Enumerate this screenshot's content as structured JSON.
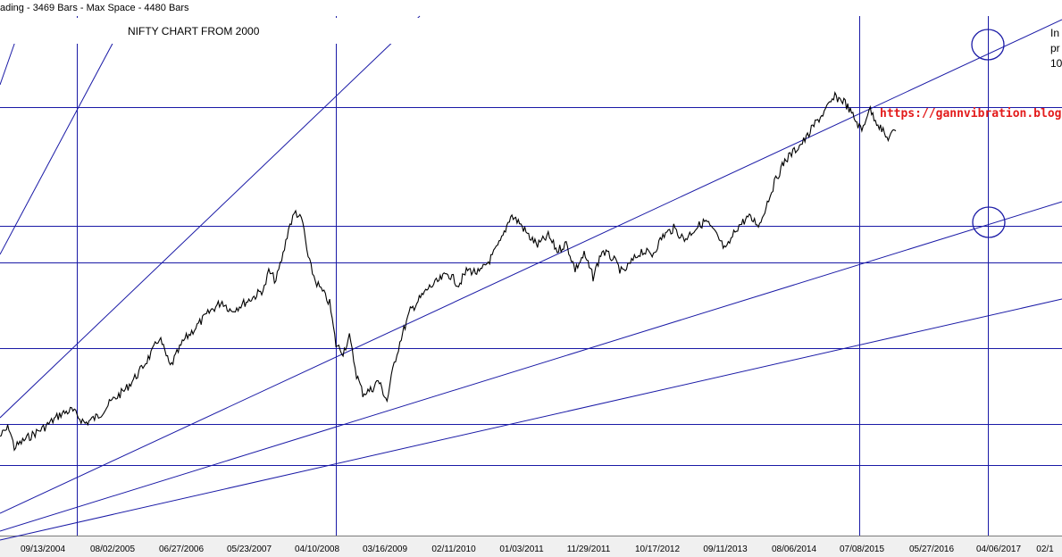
{
  "status_bar": {
    "left_text": "ading - 3469 Bars -  Max Space - 4480 Bars"
  },
  "title_box": {
    "text": "NIFTY CHART FROM 2000"
  },
  "watermark": {
    "url": "https://gannvibration.blogspot.in"
  },
  "side_note": {
    "line1": "In",
    "line2": "pr",
    "line3": "10"
  },
  "colors": {
    "background": "#ffffff",
    "chart_bg": "#ffffff",
    "price_line": "#000000",
    "gann_lines": "#1a1aa6",
    "url_text": "#e31b1b",
    "axis_bar": "#f0f0f0"
  },
  "chart_data": {
    "type": "line",
    "title": "NIFTY CHART FROM 2000",
    "xlabel": "",
    "ylabel": "",
    "x_ticks": [
      "09/13/2004",
      "08/02/2005",
      "06/27/2006",
      "05/23/2007",
      "04/10/2008",
      "03/16/2009",
      "02/11/2010",
      "01/03/2011",
      "11/29/2011",
      "10/17/2012",
      "09/11/2013",
      "08/06/2014",
      "07/08/2015",
      "05/27/2016",
      "04/06/2017",
      "02/1"
    ],
    "series": [
      {
        "values": [
          [
            0.0,
            0.205
          ],
          [
            0.01,
            0.23
          ],
          [
            0.016,
            0.175
          ],
          [
            0.03,
            0.2
          ],
          [
            0.05,
            0.23
          ],
          [
            0.068,
            0.265
          ],
          [
            0.08,
            0.275
          ],
          [
            0.095,
            0.24
          ],
          [
            0.11,
            0.26
          ],
          [
            0.125,
            0.3
          ],
          [
            0.14,
            0.33
          ],
          [
            0.155,
            0.375
          ],
          [
            0.17,
            0.43
          ],
          [
            0.178,
            0.47
          ],
          [
            0.19,
            0.39
          ],
          [
            0.205,
            0.46
          ],
          [
            0.22,
            0.5
          ],
          [
            0.235,
            0.54
          ],
          [
            0.248,
            0.565
          ],
          [
            0.258,
            0.54
          ],
          [
            0.272,
            0.56
          ],
          [
            0.285,
            0.58
          ],
          [
            0.295,
            0.6
          ],
          [
            0.3,
            0.645
          ],
          [
            0.308,
            0.62
          ],
          [
            0.316,
            0.69
          ],
          [
            0.322,
            0.76
          ],
          [
            0.33,
            0.805
          ],
          [
            0.338,
            0.775
          ],
          [
            0.344,
            0.68
          ],
          [
            0.352,
            0.62
          ],
          [
            0.36,
            0.59
          ],
          [
            0.368,
            0.56
          ],
          [
            0.375,
            0.45
          ],
          [
            0.383,
            0.43
          ],
          [
            0.39,
            0.47
          ],
          [
            0.398,
            0.37
          ],
          [
            0.405,
            0.32
          ],
          [
            0.415,
            0.33
          ],
          [
            0.422,
            0.355
          ],
          [
            0.432,
            0.3
          ],
          [
            0.44,
            0.4
          ],
          [
            0.448,
            0.47
          ],
          [
            0.458,
            0.54
          ],
          [
            0.468,
            0.57
          ],
          [
            0.478,
            0.6
          ],
          [
            0.49,
            0.62
          ],
          [
            0.5,
            0.64
          ],
          [
            0.512,
            0.61
          ],
          [
            0.522,
            0.65
          ],
          [
            0.535,
            0.64
          ],
          [
            0.548,
            0.68
          ],
          [
            0.56,
            0.73
          ],
          [
            0.57,
            0.795
          ],
          [
            0.58,
            0.775
          ],
          [
            0.59,
            0.74
          ],
          [
            0.6,
            0.715
          ],
          [
            0.612,
            0.74
          ],
          [
            0.622,
            0.7
          ],
          [
            0.632,
            0.72
          ],
          [
            0.642,
            0.65
          ],
          [
            0.652,
            0.69
          ],
          [
            0.662,
            0.63
          ],
          [
            0.672,
            0.7
          ],
          [
            0.684,
            0.68
          ],
          [
            0.695,
            0.64
          ],
          [
            0.705,
            0.67
          ],
          [
            0.716,
            0.7
          ],
          [
            0.728,
            0.69
          ],
          [
            0.74,
            0.74
          ],
          [
            0.752,
            0.76
          ],
          [
            0.764,
            0.73
          ],
          [
            0.776,
            0.76
          ],
          [
            0.788,
            0.78
          ],
          [
            0.8,
            0.74
          ],
          [
            0.81,
            0.7
          ],
          [
            0.822,
            0.76
          ],
          [
            0.835,
            0.79
          ],
          [
            0.848,
            0.77
          ],
          [
            0.858,
            0.84
          ],
          [
            0.866,
            0.89
          ],
          [
            0.876,
            0.94
          ],
          [
            0.888,
            0.97
          ],
          [
            0.9,
            1.0
          ],
          [
            0.91,
            1.04
          ],
          [
            0.92,
            1.07
          ],
          [
            0.932,
            1.11
          ],
          [
            0.942,
            1.1
          ],
          [
            0.952,
            1.06
          ],
          [
            0.962,
            1.02
          ],
          [
            0.97,
            1.08
          ],
          [
            0.98,
            1.04
          ],
          [
            0.99,
            1.0
          ],
          [
            1.0,
            1.02
          ]
        ]
      }
    ]
  }
}
